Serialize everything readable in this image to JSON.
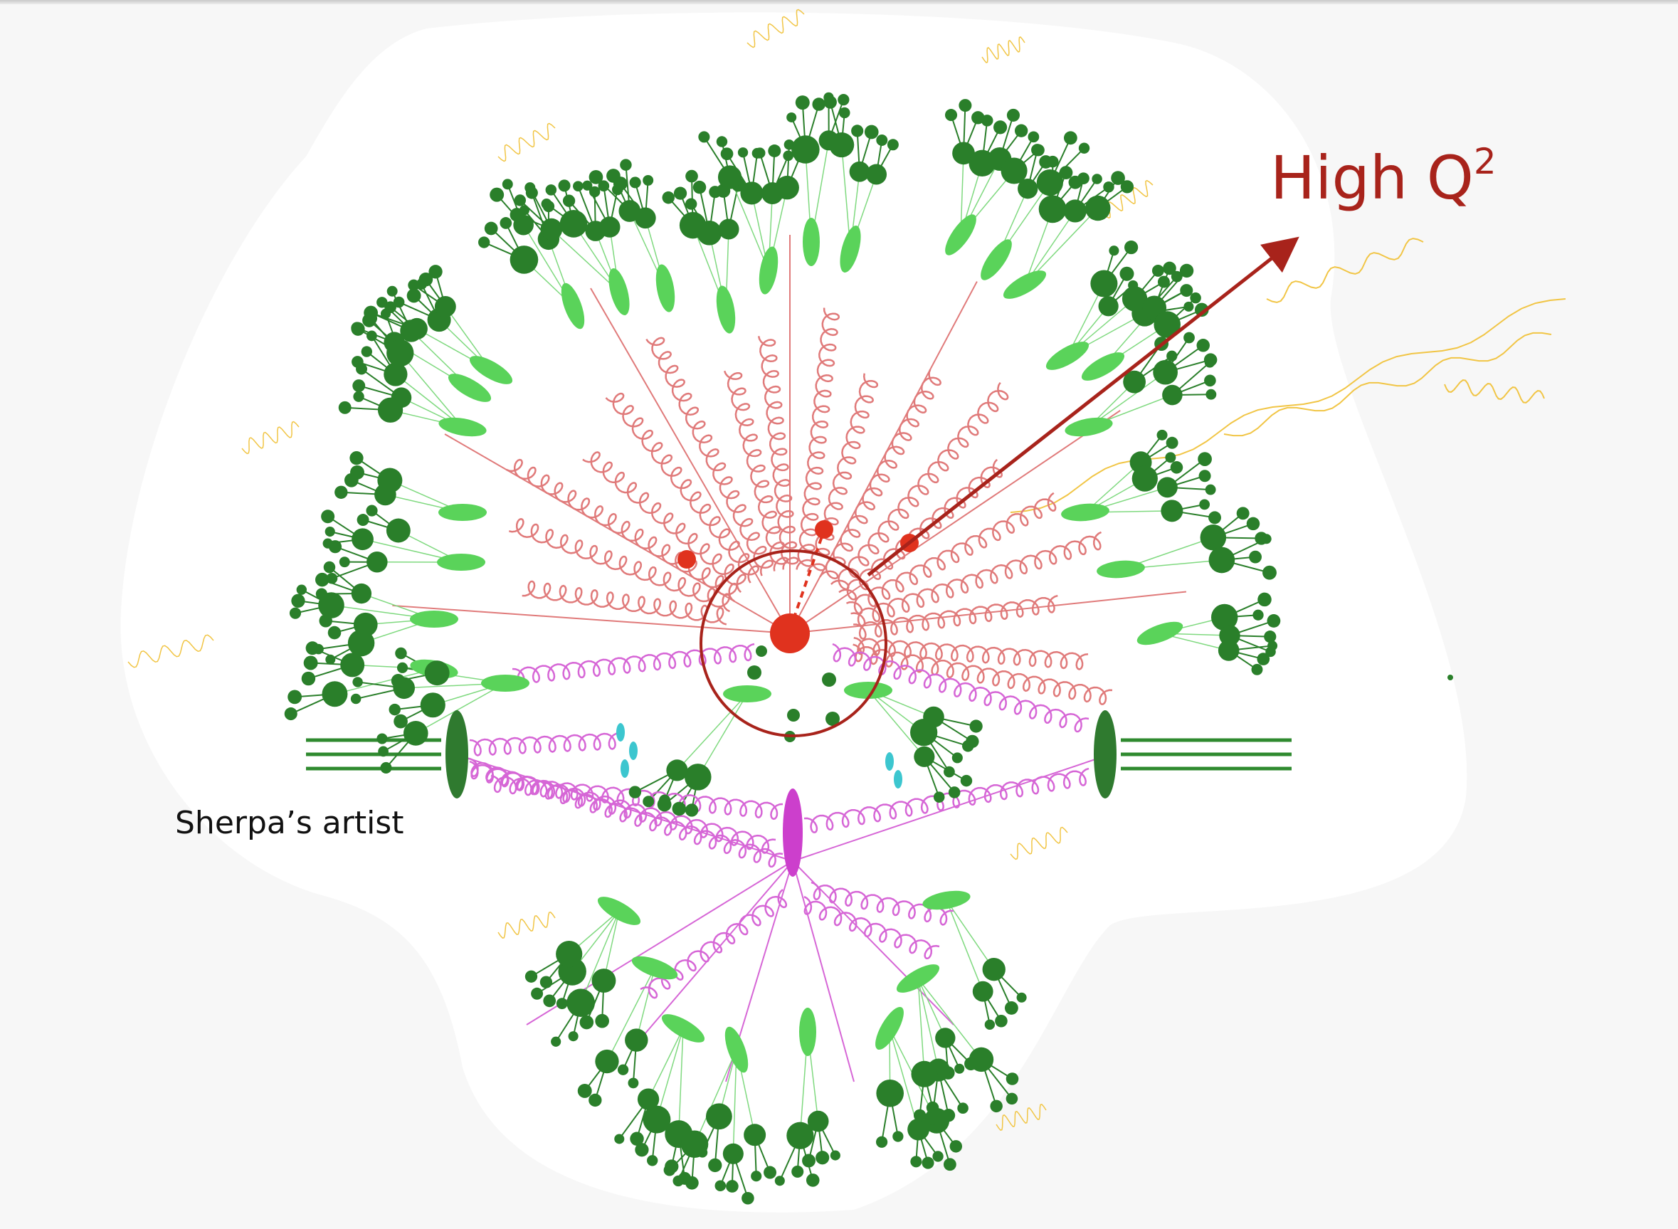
{
  "labels": {
    "high_q": "High Q",
    "high_q_exponent": "2",
    "artist": "Sherpa’s artist"
  },
  "colors": {
    "background": "#f7f7f7",
    "event_region": "#ffffff",
    "hard_process": "#e0321e",
    "annotation": "#a8231b",
    "parton_shower": "#e07a7a",
    "underlying_event": "#d666d6",
    "cluster": "#5ad35a",
    "hadron": "#2a7f2a",
    "beam": "#2f8a2f",
    "remnant": "#3cc6cf",
    "photon": "#f1c545"
  },
  "icons": [
    "hard-interaction-blob",
    "hard-process-circle-highlight",
    "arrow-to-high-q-label"
  ]
}
